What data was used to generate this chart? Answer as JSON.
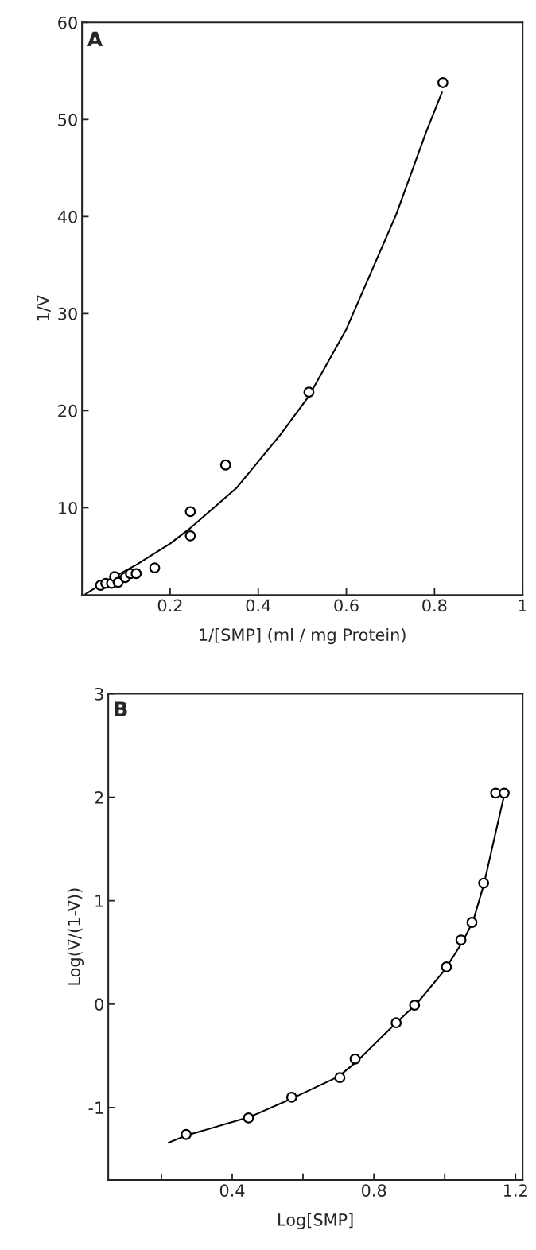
{
  "chart_data": [
    {
      "type": "scatter",
      "xlabel": "1/[SMP] (ml / mg Protein)",
      "ylabel": "1/V̄",
      "annotations": [
        "A"
      ],
      "xlim": [
        0,
        1
      ],
      "ylim": [
        1,
        60
      ],
      "xticks": [
        0.2,
        0.4,
        0.6,
        0.8,
        1
      ],
      "yticks": [
        10,
        20,
        30,
        40,
        50,
        60
      ],
      "grid": false,
      "legend": false,
      "series": [
        {
          "marker": "circle",
          "color": "#000000",
          "x": [
            0.042,
            0.054,
            0.067,
            0.074,
            0.082,
            0.098,
            0.11,
            0.123,
            0.165,
            0.246,
            0.246,
            0.326,
            0.515,
            0.819
          ],
          "values": [
            2.0,
            2.2,
            2.2,
            2.9,
            2.3,
            2.8,
            3.2,
            3.2,
            3.8,
            7.1,
            9.6,
            14.4,
            21.9,
            53.8
          ]
        },
        {
          "type": "line",
          "marker": "none",
          "line_style": "solid",
          "color": "#000000",
          "x": [
            0.008,
            0.05,
            0.123,
            0.2,
            0.246,
            0.35,
            0.45,
            0.515,
            0.6,
            0.713,
            0.781,
            0.817
          ],
          "values": [
            1.1,
            2.3,
            4.1,
            6.3,
            7.9,
            12,
            17.5,
            21.5,
            28.4,
            40.2,
            48.7,
            52.8
          ]
        }
      ]
    },
    {
      "type": "scatter",
      "xlabel": "Log[SMP]",
      "ylabel": "Log(V̄/(1-V̄))",
      "annotations": [
        "B"
      ],
      "xlim": [
        0.05,
        1.22
      ],
      "ylim": [
        -1.7,
        3
      ],
      "xticks": [
        {
          "value": 0.2,
          "label": null
        },
        0.4,
        {
          "value": 0.6,
          "label": null
        },
        0.8,
        {
          "value": 1.0,
          "label": null
        },
        1.2
      ],
      "yticks": [
        {
          "value": -1,
          "label": "-1"
        },
        0,
        1,
        2,
        3
      ],
      "grid": false,
      "legend": false,
      "series": [
        {
          "marker": "circle",
          "color": "#000000",
          "x": [
            0.27,
            0.446,
            0.568,
            0.704,
            0.747,
            0.863,
            0.915,
            1.005,
            1.046,
            1.077,
            1.11,
            1.144,
            1.168
          ],
          "values": [
            -1.26,
            -1.1,
            -0.9,
            -0.71,
            -0.53,
            -0.18,
            -0.01,
            0.36,
            0.62,
            0.79,
            1.17,
            2.04,
            2.04
          ]
        },
        {
          "type": "line",
          "marker": "none",
          "line_style": "solid",
          "color": "#000000",
          "x": [
            0.22,
            0.27,
            0.45,
            0.57,
            0.7,
            0.75,
            0.86,
            0.92,
            1.0,
            1.05,
            1.08,
            1.11,
            1.14,
            1.168
          ],
          "values": [
            -1.34,
            -1.27,
            -1.09,
            -0.91,
            -0.7,
            -0.56,
            -0.19,
            0.0,
            0.33,
            0.6,
            0.8,
            1.15,
            1.6,
            2.02
          ]
        }
      ]
    }
  ]
}
